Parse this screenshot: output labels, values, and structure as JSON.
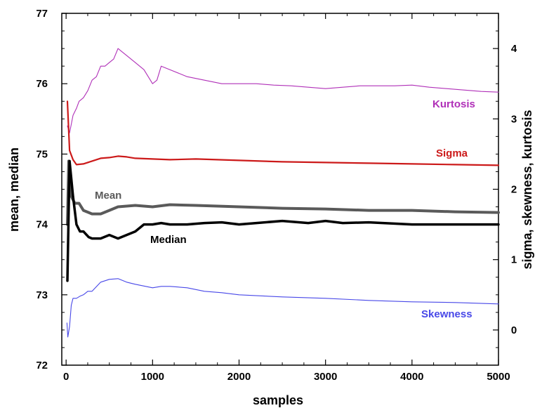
{
  "chart_data": {
    "type": "line",
    "xlabel": "samples",
    "ylabel_left": "mean, median",
    "ylabel_right": "sigma, skewness, kurtosis",
    "xlim": [
      -50,
      5000
    ],
    "ylim_left": [
      72,
      77
    ],
    "ylim_right": [
      -0.5,
      4.5
    ],
    "xticks": [
      0,
      1000,
      2000,
      3000,
      4000,
      5000
    ],
    "yticks_left": [
      72,
      73,
      74,
      75,
      76,
      77
    ],
    "yticks_right": [
      0,
      1,
      2,
      3,
      4
    ],
    "grid": false,
    "series": [
      {
        "name": "Kurtosis",
        "axis": "right",
        "color": "#b030b8",
        "thickness": 1.1,
        "x": [
          15,
          40,
          80,
          120,
          150,
          200,
          250,
          300,
          350,
          400,
          450,
          500,
          550,
          600,
          650,
          700,
          800,
          900,
          1000,
          1050,
          1100,
          1200,
          1400,
          1600,
          1800,
          2000,
          2200,
          2400,
          2600,
          2800,
          3000,
          3200,
          3400,
          3600,
          3800,
          4000,
          4200,
          4400,
          4600,
          4800,
          5000
        ],
        "y": [
          2.9,
          2.8,
          3.05,
          3.15,
          3.25,
          3.3,
          3.4,
          3.55,
          3.6,
          3.75,
          3.75,
          3.8,
          3.85,
          4.0,
          3.95,
          3.9,
          3.8,
          3.7,
          3.5,
          3.55,
          3.75,
          3.7,
          3.6,
          3.55,
          3.5,
          3.5,
          3.5,
          3.48,
          3.47,
          3.45,
          3.43,
          3.45,
          3.47,
          3.47,
          3.47,
          3.48,
          3.45,
          3.43,
          3.41,
          3.39,
          3.38
        ]
      },
      {
        "name": "Sigma",
        "axis": "right",
        "color": "#cc1a1a",
        "thickness": 2.2,
        "x": [
          15,
          40,
          80,
          120,
          200,
          300,
          400,
          500,
          600,
          700,
          800,
          1000,
          1200,
          1500,
          2000,
          2500,
          3000,
          3500,
          4000,
          4500,
          5000
        ],
        "y": [
          3.25,
          2.55,
          2.42,
          2.35,
          2.36,
          2.4,
          2.44,
          2.45,
          2.47,
          2.46,
          2.44,
          2.43,
          2.42,
          2.43,
          2.41,
          2.39,
          2.38,
          2.37,
          2.36,
          2.35,
          2.34
        ]
      },
      {
        "name": "Skewness",
        "axis": "right",
        "color": "#4848e8",
        "thickness": 1.1,
        "x": [
          10,
          20,
          40,
          60,
          80,
          120,
          160,
          200,
          250,
          300,
          400,
          500,
          600,
          700,
          800,
          1000,
          1100,
          1200,
          1400,
          1600,
          1800,
          2000,
          2500,
          3000,
          3500,
          4000,
          4500,
          5000
        ],
        "y": [
          0.1,
          -0.1,
          0.05,
          0.35,
          0.45,
          0.45,
          0.48,
          0.5,
          0.55,
          0.55,
          0.68,
          0.72,
          0.73,
          0.68,
          0.65,
          0.6,
          0.62,
          0.62,
          0.6,
          0.55,
          0.53,
          0.5,
          0.47,
          0.45,
          0.42,
          0.4,
          0.39,
          0.37
        ]
      },
      {
        "name": "Mean",
        "axis": "left",
        "color": "#5a5a5a",
        "thickness": 4,
        "x": [
          15,
          30,
          60,
          100,
          150,
          200,
          300,
          400,
          500,
          600,
          800,
          1000,
          1200,
          1500,
          2000,
          2500,
          3000,
          3500,
          4000,
          4500,
          5000
        ],
        "y": [
          74.0,
          74.9,
          74.4,
          74.3,
          74.3,
          74.2,
          74.15,
          74.15,
          74.2,
          74.25,
          74.27,
          74.25,
          74.28,
          74.27,
          74.25,
          74.23,
          74.22,
          74.2,
          74.2,
          74.18,
          74.17
        ]
      },
      {
        "name": "Median",
        "axis": "left",
        "color": "#000000",
        "thickness": 3.5,
        "x": [
          15,
          40,
          80,
          120,
          160,
          200,
          260,
          300,
          400,
          500,
          600,
          700,
          800,
          900,
          1000,
          1100,
          1200,
          1400,
          1600,
          1800,
          2000,
          2200,
          2500,
          2800,
          3000,
          3200,
          3500,
          4000,
          4500,
          5000
        ],
        "y": [
          73.2,
          74.9,
          74.4,
          74.0,
          73.9,
          73.9,
          73.82,
          73.8,
          73.8,
          73.85,
          73.8,
          73.85,
          73.9,
          74.0,
          74.0,
          74.02,
          74.0,
          74.0,
          74.02,
          74.03,
          74.0,
          74.02,
          74.05,
          74.02,
          74.05,
          74.02,
          74.03,
          74.0,
          74.0,
          74.0
        ]
      }
    ],
    "labels": {
      "kurtosis": "Kurtosis",
      "sigma": "Sigma",
      "mean": "Mean",
      "median": "Median",
      "skewness": "Skewness"
    }
  }
}
